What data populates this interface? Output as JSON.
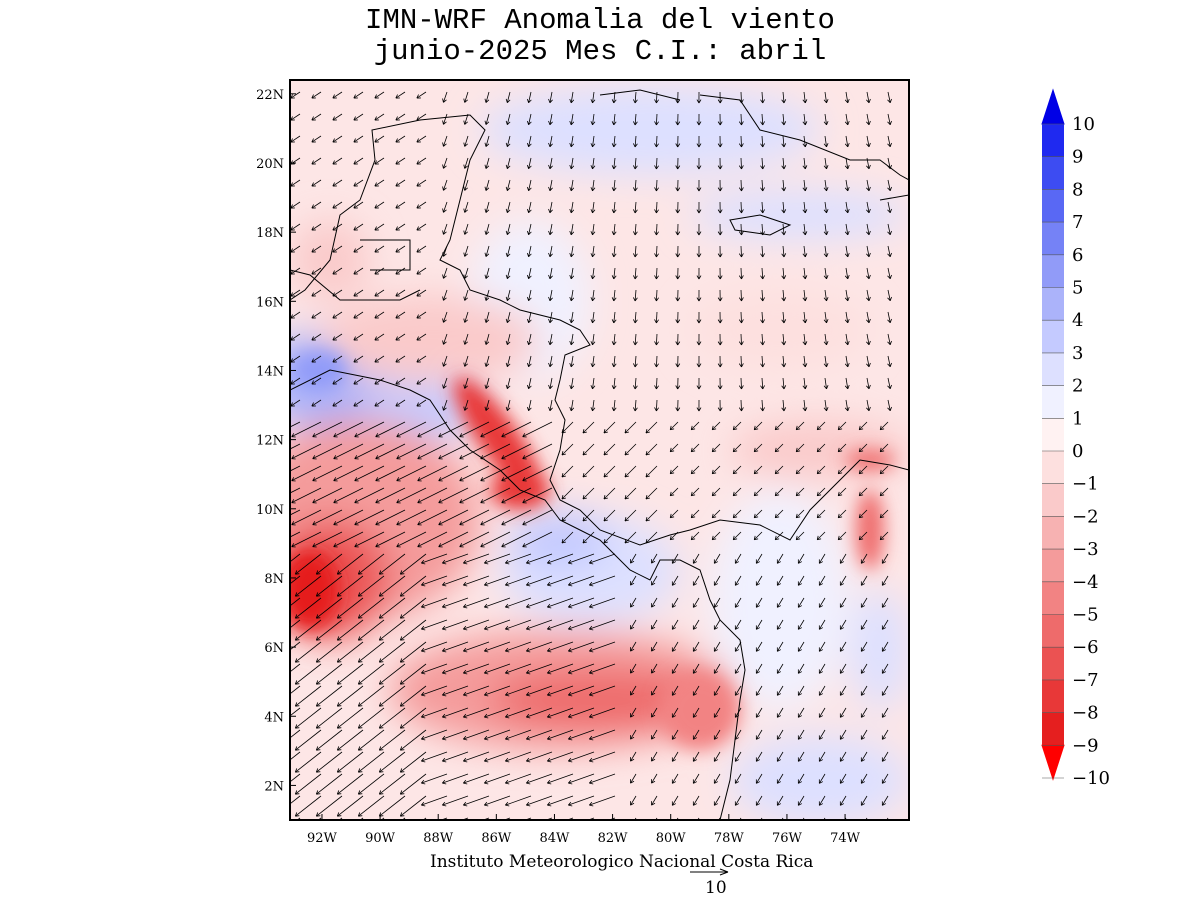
{
  "title": {
    "line1": "IMN-WRF Anomalia del viento",
    "line2": "junio-2025 Mes C.I.: abril"
  },
  "footer": "Instituto Meteorologico Nacional Costa Rica",
  "vector_reference": "10",
  "chart_data": {
    "type": "heatmap",
    "subtype": "wind anomaly map with vectors",
    "x_tick_labels": [
      "92W",
      "90W",
      "88W",
      "86W",
      "84W",
      "82W",
      "80W",
      "78W",
      "76W",
      "74W"
    ],
    "y_tick_labels": [
      "22N",
      "20N",
      "18N",
      "16N",
      "14N",
      "12N",
      "10N",
      "8N",
      "6N",
      "4N",
      "2N"
    ],
    "lon_range": [
      -93.1,
      -71.8
    ],
    "lat_range": [
      1.0,
      22.4
    ],
    "colorbar": {
      "labels": [
        "10",
        "9",
        "8",
        "7",
        "6",
        "5",
        "4",
        "3",
        "2",
        "1",
        "0",
        "-1",
        "-2",
        "-3",
        "-4",
        "-5",
        "-6",
        "-7",
        "-8",
        "-9",
        "-10"
      ],
      "colors": [
        "#0000e6",
        "#1f29f0",
        "#3d4cf2",
        "#5968f4",
        "#7582f6",
        "#919bf8",
        "#abb3fa",
        "#c4caff",
        "#dde0ff",
        "#f0f1ff",
        "#fff2f2",
        "#fde0df",
        "#facaca",
        "#f7b2b2",
        "#f49b9b",
        "#f28383",
        "#ee6b6b",
        "#eb5252",
        "#e83838",
        "#e51f1f",
        "#ff0000"
      ],
      "extends": "both"
    },
    "anomaly_regions": [
      {
        "lon": -92,
        "lat": 7.8,
        "value": -9
      },
      {
        "lon": -90,
        "lat": 9.5,
        "value": -7
      },
      {
        "lon": -86,
        "lat": 10.8,
        "value": -7
      },
      {
        "lon": -85.5,
        "lat": 5.3,
        "value": -6
      },
      {
        "lon": -82,
        "lat": 4.8,
        "value": -5
      },
      {
        "lon": -73.5,
        "lat": 9.5,
        "value": -5
      },
      {
        "lon": -91.8,
        "lat": 14.2,
        "value": 3
      },
      {
        "lon": -83,
        "lat": 8.5,
        "value": 2
      },
      {
        "lon": -80,
        "lat": 20.5,
        "value": 2
      },
      {
        "lon": -76,
        "lat": 2.5,
        "value": 2
      }
    ]
  }
}
